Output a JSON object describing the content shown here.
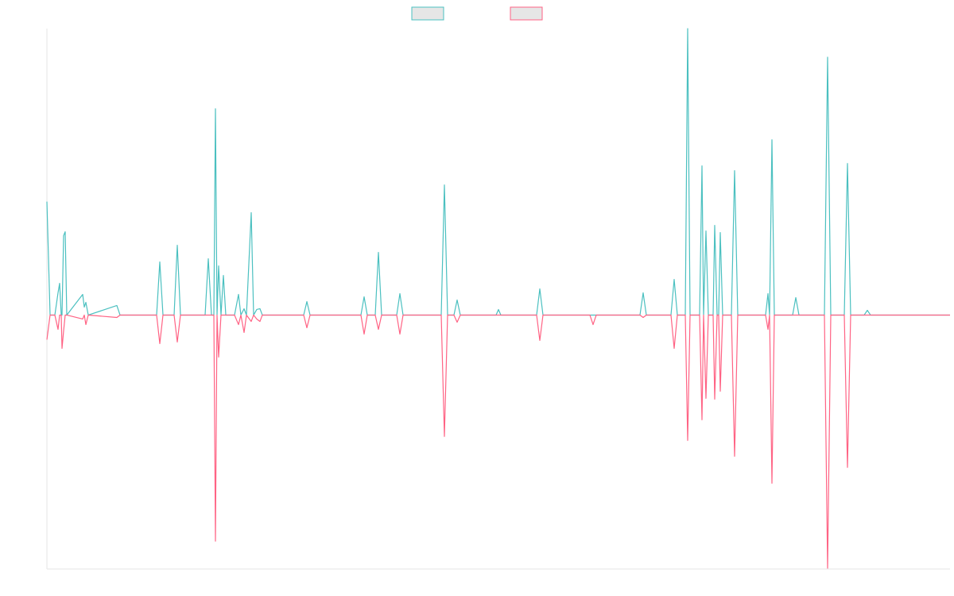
{
  "chart_data": {
    "type": "line",
    "x": [
      0,
      4,
      10,
      14,
      16,
      18,
      19,
      21,
      23,
      25,
      45,
      47,
      49,
      52,
      88,
      92,
      138,
      142,
      146,
      160,
      164,
      168,
      199,
      203,
      207,
      210,
      212,
      214,
      216,
      219,
      222,
      225,
      236,
      241,
      244,
      248,
      251,
      257,
      260,
      264,
      268,
      271,
      323,
      327,
      331,
      395,
      399,
      403,
      413,
      417,
      421,
      440,
      444,
      448,
      496,
      500,
      504,
      512,
      516,
      520,
      565,
      568,
      571,
      616,
      620,
      624,
      683,
      687,
      691,
      746,
      750,
      754,
      785,
      789,
      793,
      803,
      806,
      809,
      821,
      824,
      826,
      829,
      832,
      838,
      840,
      843,
      845,
      847,
      850,
      861,
      865,
      869,
      904,
      907,
      909,
      912,
      915,
      938,
      942,
      946,
      978,
      982,
      986,
      1003,
      1007,
      1011,
      1028,
      1032,
      1036,
      1136
    ],
    "series": [
      {
        "color": "#4bc0c0",
        "values": [
          143,
          0,
          0,
          28,
          40,
          0,
          0,
          100,
          105,
          0,
          26,
          10,
          16,
          0,
          12,
          0,
          0,
          67,
          0,
          0,
          88,
          0,
          0,
          71,
          0,
          0,
          260,
          0,
          62,
          0,
          50,
          0,
          0,
          26,
          0,
          8,
          0,
          129,
          0,
          7,
          8,
          0,
          0,
          17,
          0,
          0,
          23,
          0,
          0,
          79,
          0,
          0,
          27,
          0,
          0,
          164,
          0,
          0,
          19,
          0,
          0,
          7,
          0,
          0,
          33,
          0,
          0,
          0,
          0,
          0,
          28,
          0,
          0,
          45,
          0,
          0,
          361,
          0,
          0,
          188,
          0,
          106,
          0,
          0,
          113,
          0,
          0,
          104,
          0,
          0,
          182,
          0,
          0,
          27,
          0,
          221,
          0,
          0,
          22,
          0,
          0,
          325,
          0,
          0,
          191,
          0,
          0,
          6,
          0,
          0
        ]
      },
      {
        "color": "#ff6384",
        "values": [
          -31,
          0,
          0,
          -18,
          0,
          0,
          -42,
          -20,
          0,
          0,
          -5,
          0,
          -12,
          0,
          -3,
          0,
          0,
          -36,
          0,
          0,
          -34,
          0,
          0,
          0,
          0,
          0,
          -285,
          0,
          -53,
          0,
          0,
          0,
          0,
          -12,
          0,
          -22,
          0,
          -8,
          0,
          -5,
          -8,
          0,
          0,
          -16,
          0,
          0,
          -24,
          0,
          0,
          -18,
          0,
          0,
          -24,
          0,
          0,
          -153,
          0,
          0,
          -9,
          0,
          0,
          0,
          0,
          0,
          -32,
          0,
          0,
          -12,
          0,
          0,
          -3,
          0,
          0,
          -42,
          0,
          0,
          -158,
          0,
          0,
          -132,
          0,
          -105,
          0,
          0,
          -106,
          0,
          0,
          -96,
          0,
          0,
          -178,
          0,
          0,
          -18,
          0,
          -212,
          0,
          0,
          0,
          0,
          0,
          -319,
          0,
          0,
          -192,
          0,
          0,
          0,
          0,
          0
        ]
      }
    ],
    "xlim": [
      0,
      1136
    ],
    "ylim": [
      -320,
      361
    ],
    "legend": "top"
  }
}
